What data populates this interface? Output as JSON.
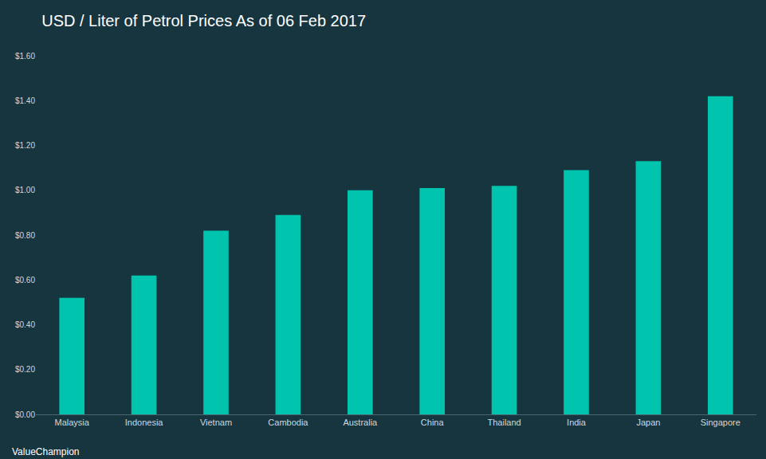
{
  "chart_data": {
    "type": "bar",
    "title": "USD / Liter of Petrol Prices As of 06 Feb 2017",
    "categories": [
      "Malaysia",
      "Indonesia",
      "Vietnam",
      "Cambodia",
      "Australia",
      "China",
      "Thailand",
      "India",
      "Japan",
      "Singapore"
    ],
    "values": [
      0.52,
      0.62,
      0.82,
      0.89,
      1.0,
      1.01,
      1.02,
      1.09,
      1.13,
      1.42
    ],
    "color": "#00c4ae",
    "ylim": [
      0,
      1.6
    ],
    "yticks": [
      {
        "value": 0,
        "label": "$0.00"
      },
      {
        "value": 0.2,
        "label": "$0.20"
      },
      {
        "value": 0.4,
        "label": "$0.40"
      },
      {
        "value": 0.6,
        "label": "$0.60"
      },
      {
        "value": 0.8,
        "label": "$0.80"
      },
      {
        "value": 1.0,
        "label": "$1.00"
      },
      {
        "value": 1.2,
        "label": "$1.20"
      },
      {
        "value": 1.4,
        "label": "$1.40"
      },
      {
        "value": 1.6,
        "label": "$1.60"
      }
    ],
    "grid": false,
    "annotations": [
      "ValueChampion"
    ]
  }
}
